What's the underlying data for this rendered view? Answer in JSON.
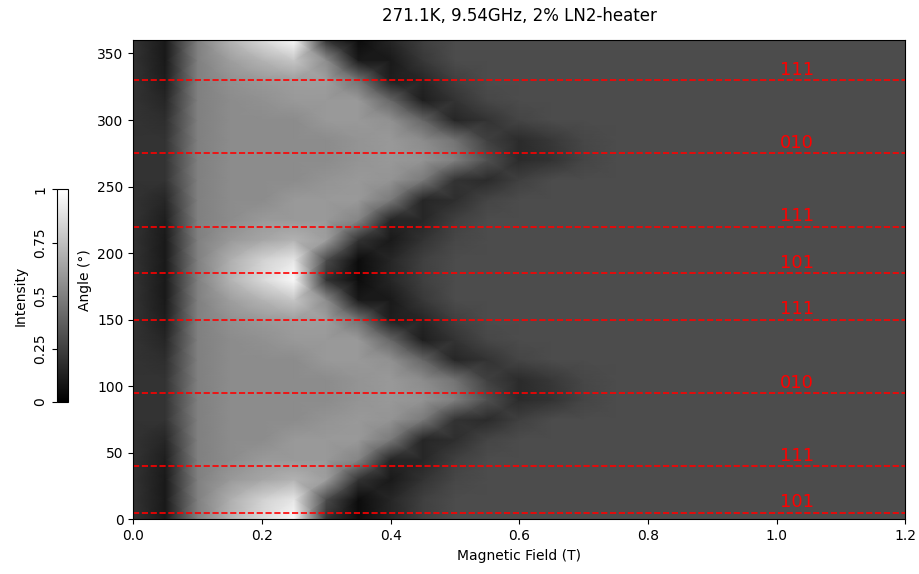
{
  "chart_data": {
    "type": "heatmap",
    "title": "271.1K, 9.54GHz, 2% LN2-heater",
    "x_label": "Magnetic Field (T)",
    "y_label": "Angle (°)",
    "xlim": [
      0.0,
      1.2
    ],
    "xticks": [
      0.0,
      0.2,
      0.4,
      0.6,
      0.8,
      1.0,
      1.2
    ],
    "ylim": [
      0,
      360
    ],
    "yticks": [
      0,
      50,
      100,
      150,
      200,
      250,
      300,
      350
    ],
    "x": [
      0.0,
      0.05,
      0.1,
      0.15,
      0.2,
      0.25,
      0.3,
      0.35,
      0.4,
      0.45,
      0.5,
      0.55,
      0.6,
      0.65,
      0.7,
      0.75,
      0.8,
      0.85,
      0.9,
      0.95,
      1.0,
      1.05,
      1.1,
      1.15,
      1.2
    ],
    "y": [
      0,
      15,
      30,
      45,
      60,
      75,
      90,
      105,
      120,
      135,
      150,
      165,
      180,
      195,
      210,
      225,
      240,
      255,
      270,
      285,
      300,
      315,
      330,
      345,
      360
    ],
    "values": [
      [
        0.2,
        0.1,
        0.5,
        0.7,
        0.85,
        0.98,
        0.2,
        0.05,
        0.15,
        0.25,
        0.3,
        0.3,
        0.3,
        0.3,
        0.3,
        0.3,
        0.3,
        0.3,
        0.3,
        0.3,
        0.3,
        0.3,
        0.3,
        0.3,
        0.3
      ],
      [
        0.2,
        0.1,
        0.5,
        0.68,
        0.82,
        0.9,
        0.3,
        0.05,
        0.15,
        0.25,
        0.3,
        0.3,
        0.3,
        0.3,
        0.3,
        0.3,
        0.3,
        0.3,
        0.3,
        0.3,
        0.3,
        0.3,
        0.3,
        0.3,
        0.3
      ],
      [
        0.2,
        0.1,
        0.5,
        0.6,
        0.65,
        0.7,
        0.62,
        0.2,
        0.1,
        0.2,
        0.28,
        0.3,
        0.3,
        0.3,
        0.3,
        0.3,
        0.3,
        0.3,
        0.3,
        0.3,
        0.3,
        0.3,
        0.3,
        0.3,
        0.3
      ],
      [
        0.2,
        0.12,
        0.5,
        0.55,
        0.6,
        0.6,
        0.6,
        0.52,
        0.15,
        0.15,
        0.25,
        0.3,
        0.3,
        0.3,
        0.3,
        0.3,
        0.3,
        0.3,
        0.3,
        0.3,
        0.3,
        0.3,
        0.3,
        0.3,
        0.3
      ],
      [
        0.2,
        0.15,
        0.5,
        0.55,
        0.55,
        0.6,
        0.6,
        0.6,
        0.48,
        0.15,
        0.18,
        0.27,
        0.3,
        0.3,
        0.3,
        0.3,
        0.3,
        0.3,
        0.3,
        0.3,
        0.3,
        0.3,
        0.3,
        0.3,
        0.3
      ],
      [
        0.2,
        0.2,
        0.5,
        0.55,
        0.55,
        0.55,
        0.58,
        0.6,
        0.58,
        0.48,
        0.2,
        0.17,
        0.25,
        0.3,
        0.3,
        0.3,
        0.3,
        0.3,
        0.3,
        0.3,
        0.3,
        0.3,
        0.3,
        0.3,
        0.3
      ],
      [
        0.2,
        0.2,
        0.5,
        0.55,
        0.55,
        0.55,
        0.55,
        0.58,
        0.6,
        0.58,
        0.5,
        0.32,
        0.17,
        0.2,
        0.27,
        0.3,
        0.3,
        0.3,
        0.3,
        0.3,
        0.3,
        0.3,
        0.3,
        0.3,
        0.3
      ],
      [
        0.2,
        0.2,
        0.5,
        0.55,
        0.55,
        0.55,
        0.55,
        0.58,
        0.6,
        0.55,
        0.45,
        0.25,
        0.17,
        0.22,
        0.28,
        0.3,
        0.3,
        0.3,
        0.3,
        0.3,
        0.3,
        0.3,
        0.3,
        0.3,
        0.3
      ],
      [
        0.2,
        0.18,
        0.5,
        0.55,
        0.55,
        0.55,
        0.6,
        0.6,
        0.57,
        0.4,
        0.15,
        0.2,
        0.27,
        0.3,
        0.3,
        0.3,
        0.3,
        0.3,
        0.3,
        0.3,
        0.3,
        0.3,
        0.3,
        0.3,
        0.3
      ],
      [
        0.2,
        0.15,
        0.5,
        0.55,
        0.57,
        0.6,
        0.6,
        0.6,
        0.4,
        0.12,
        0.2,
        0.28,
        0.3,
        0.3,
        0.3,
        0.3,
        0.3,
        0.3,
        0.3,
        0.3,
        0.3,
        0.3,
        0.3,
        0.3,
        0.3
      ],
      [
        0.2,
        0.12,
        0.5,
        0.57,
        0.6,
        0.62,
        0.62,
        0.45,
        0.12,
        0.15,
        0.25,
        0.3,
        0.3,
        0.3,
        0.3,
        0.3,
        0.3,
        0.3,
        0.3,
        0.3,
        0.3,
        0.3,
        0.3,
        0.3,
        0.3
      ],
      [
        0.2,
        0.1,
        0.5,
        0.62,
        0.7,
        0.78,
        0.55,
        0.1,
        0.1,
        0.22,
        0.3,
        0.3,
        0.3,
        0.3,
        0.3,
        0.3,
        0.3,
        0.3,
        0.3,
        0.3,
        0.3,
        0.3,
        0.3,
        0.3,
        0.3
      ],
      [
        0.2,
        0.1,
        0.5,
        0.7,
        0.85,
        0.98,
        0.2,
        0.05,
        0.15,
        0.25,
        0.3,
        0.3,
        0.3,
        0.3,
        0.3,
        0.3,
        0.3,
        0.3,
        0.3,
        0.3,
        0.3,
        0.3,
        0.3,
        0.3,
        0.3
      ],
      [
        0.2,
        0.1,
        0.5,
        0.68,
        0.82,
        0.9,
        0.3,
        0.05,
        0.15,
        0.25,
        0.3,
        0.3,
        0.3,
        0.3,
        0.3,
        0.3,
        0.3,
        0.3,
        0.3,
        0.3,
        0.3,
        0.3,
        0.3,
        0.3,
        0.3
      ],
      [
        0.2,
        0.1,
        0.5,
        0.6,
        0.65,
        0.7,
        0.62,
        0.2,
        0.1,
        0.2,
        0.28,
        0.3,
        0.3,
        0.3,
        0.3,
        0.3,
        0.3,
        0.3,
        0.3,
        0.3,
        0.3,
        0.3,
        0.3,
        0.3,
        0.3
      ],
      [
        0.2,
        0.12,
        0.5,
        0.55,
        0.6,
        0.6,
        0.6,
        0.52,
        0.15,
        0.15,
        0.25,
        0.3,
        0.3,
        0.3,
        0.3,
        0.3,
        0.3,
        0.3,
        0.3,
        0.3,
        0.3,
        0.3,
        0.3,
        0.3,
        0.3
      ],
      [
        0.2,
        0.15,
        0.5,
        0.55,
        0.55,
        0.6,
        0.6,
        0.6,
        0.48,
        0.15,
        0.18,
        0.27,
        0.3,
        0.3,
        0.3,
        0.3,
        0.3,
        0.3,
        0.3,
        0.3,
        0.3,
        0.3,
        0.3,
        0.3,
        0.3
      ],
      [
        0.2,
        0.2,
        0.5,
        0.55,
        0.55,
        0.55,
        0.58,
        0.6,
        0.58,
        0.48,
        0.2,
        0.17,
        0.25,
        0.3,
        0.3,
        0.3,
        0.3,
        0.3,
        0.3,
        0.3,
        0.3,
        0.3,
        0.3,
        0.3,
        0.3
      ],
      [
        0.2,
        0.2,
        0.5,
        0.55,
        0.55,
        0.55,
        0.55,
        0.58,
        0.6,
        0.58,
        0.5,
        0.32,
        0.17,
        0.2,
        0.27,
        0.3,
        0.3,
        0.3,
        0.3,
        0.3,
        0.3,
        0.3,
        0.3,
        0.3,
        0.3
      ],
      [
        0.2,
        0.2,
        0.5,
        0.55,
        0.55,
        0.55,
        0.55,
        0.58,
        0.6,
        0.55,
        0.45,
        0.25,
        0.17,
        0.22,
        0.28,
        0.3,
        0.3,
        0.3,
        0.3,
        0.3,
        0.3,
        0.3,
        0.3,
        0.3,
        0.3
      ],
      [
        0.2,
        0.18,
        0.5,
        0.55,
        0.55,
        0.55,
        0.6,
        0.6,
        0.57,
        0.4,
        0.15,
        0.2,
        0.27,
        0.3,
        0.3,
        0.3,
        0.3,
        0.3,
        0.3,
        0.3,
        0.3,
        0.3,
        0.3,
        0.3,
        0.3
      ],
      [
        0.2,
        0.15,
        0.5,
        0.55,
        0.57,
        0.6,
        0.6,
        0.6,
        0.4,
        0.12,
        0.2,
        0.28,
        0.3,
        0.3,
        0.3,
        0.3,
        0.3,
        0.3,
        0.3,
        0.3,
        0.3,
        0.3,
        0.3,
        0.3,
        0.3
      ],
      [
        0.2,
        0.12,
        0.5,
        0.57,
        0.6,
        0.62,
        0.62,
        0.45,
        0.12,
        0.15,
        0.25,
        0.3,
        0.3,
        0.3,
        0.3,
        0.3,
        0.3,
        0.3,
        0.3,
        0.3,
        0.3,
        0.3,
        0.3,
        0.3,
        0.3
      ],
      [
        0.2,
        0.1,
        0.5,
        0.62,
        0.7,
        0.78,
        0.55,
        0.1,
        0.1,
        0.22,
        0.3,
        0.3,
        0.3,
        0.3,
        0.3,
        0.3,
        0.3,
        0.3,
        0.3,
        0.3,
        0.3,
        0.3,
        0.3,
        0.3,
        0.3
      ],
      [
        0.2,
        0.1,
        0.5,
        0.7,
        0.85,
        0.98,
        0.2,
        0.05,
        0.15,
        0.25,
        0.3,
        0.3,
        0.3,
        0.3,
        0.3,
        0.3,
        0.3,
        0.3,
        0.3,
        0.3,
        0.3,
        0.3,
        0.3,
        0.3,
        0.3
      ]
    ],
    "colorbar": {
      "label": "Intensity",
      "range": [
        0,
        1
      ],
      "ticks": [
        0,
        0.25,
        0.5,
        0.75,
        1
      ]
    },
    "annotations": [
      {
        "y": 5,
        "label": "101"
      },
      {
        "y": 40,
        "label": "111"
      },
      {
        "y": 95,
        "label": "010"
      },
      {
        "y": 150,
        "label": "111"
      },
      {
        "y": 185,
        "label": "101"
      },
      {
        "y": 220,
        "label": "111"
      },
      {
        "y": 275,
        "label": "010"
      },
      {
        "y": 330,
        "label": "111"
      }
    ]
  }
}
